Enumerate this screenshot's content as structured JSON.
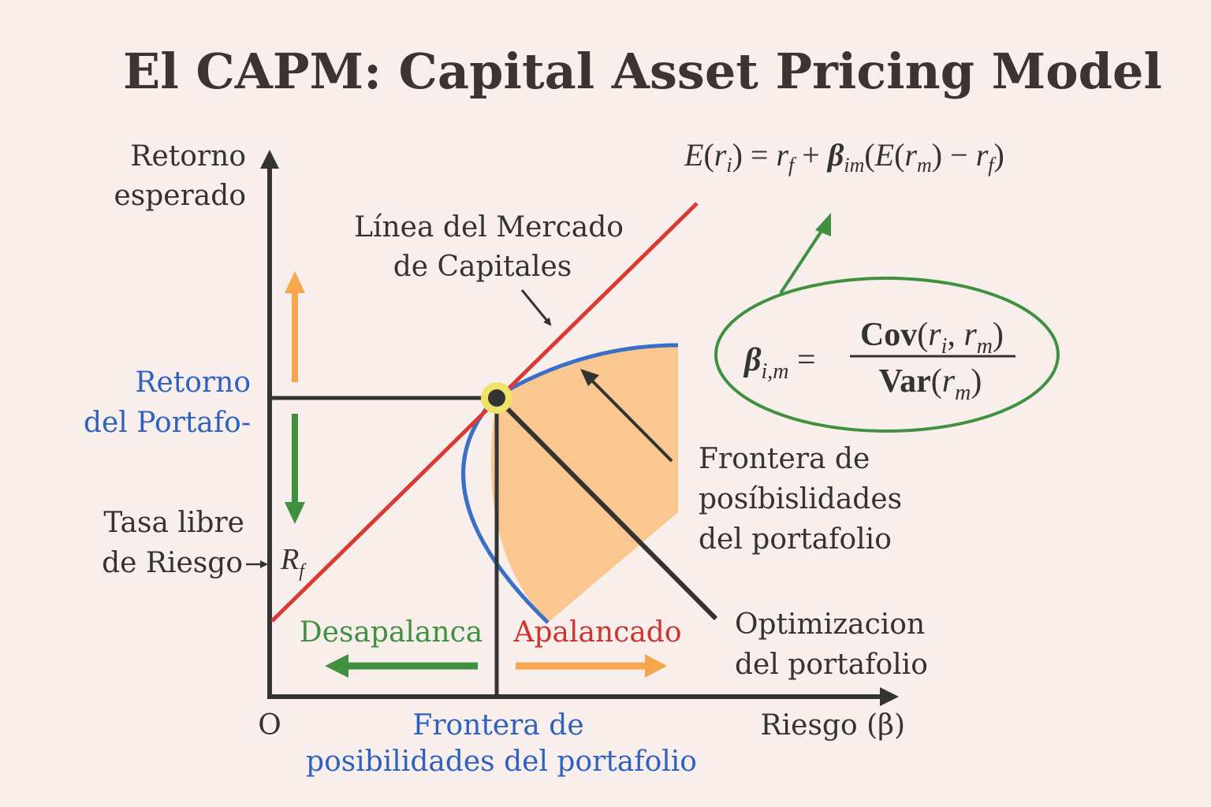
{
  "title": "El CAPM: Capital Asset Pricing Model",
  "axes": {
    "y_label_line1": "Retorno",
    "y_label_line2": "esperado",
    "x_label": "Riesgo (β)",
    "origin": "O"
  },
  "labels": {
    "cml_line1": "Línea del Mercado",
    "cml_line2": "de Capitales",
    "portfolio_return_line1": "Retorno",
    "portfolio_return_line2": "del Portafo-",
    "risk_free_line1": "Tasa libre",
    "risk_free_line2": "de Riesgo",
    "rf_symbol": "R",
    "rf_sub": "f",
    "frontier_right_line1": "Frontera de",
    "frontier_right_line2": "posíbislidades",
    "frontier_right_line3": "del portafolio",
    "optim_line1": "Optimizacion",
    "optim_line2": "del portafolio",
    "deleverage": "Desapalanca",
    "leverage": "Apalancado",
    "frontier_bottom_line1": "Frontera de",
    "frontier_bottom_line2": "posibilidades del portafolio"
  },
  "formulas": {
    "capm": "E(rᵢ) = r_f + β_im (E(r_m) − r_f)",
    "beta_lhs": "β_i,m =",
    "beta_numerator": "Cov(rᵢ, r_m)",
    "beta_denominator": "Var(r_m)"
  },
  "colors": {
    "background": "#f8eeeb",
    "axis": "#333333",
    "cml": "#d93a34",
    "frontier": "#3a6fc8",
    "feasible_fill": "#f9c78f",
    "blue_text": "#2f62c0",
    "green": "#3f9140",
    "orange": "#f6a64c",
    "red_text": "#d0332d",
    "tangent_point": "#f2e26a"
  }
}
